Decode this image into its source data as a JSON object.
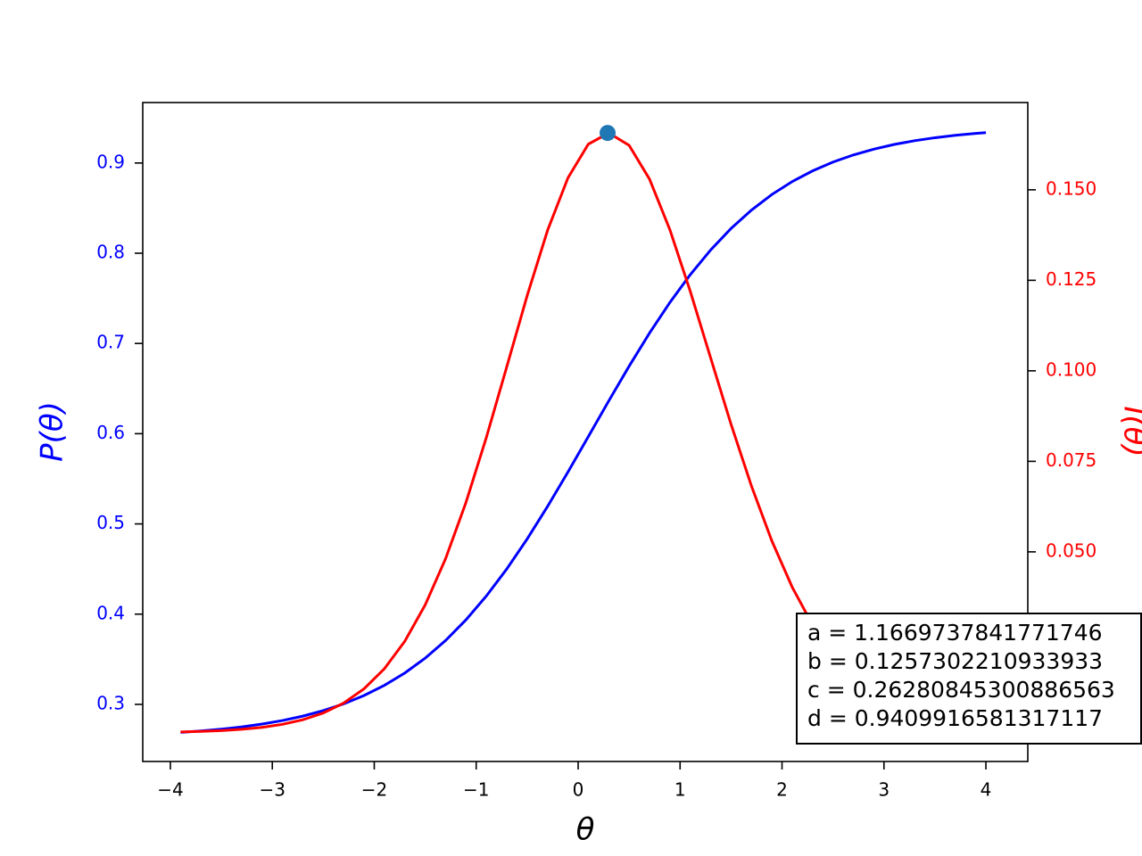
{
  "chart_data": {
    "type": "line",
    "xlabel": "θ",
    "ylabel": "P(θ)",
    "y2label": "I(θ)",
    "x": [
      -3.9,
      -3.7,
      -3.5,
      -3.3,
      -3.1,
      -2.9,
      -2.7,
      -2.5,
      -2.3,
      -2.1,
      -1.9,
      -1.7,
      -1.5,
      -1.3,
      -1.1,
      -0.9,
      -0.7,
      -0.5,
      -0.3,
      -0.1,
      0.1,
      0.3,
      0.5,
      0.7,
      0.9,
      1.1,
      1.3,
      1.5,
      1.7,
      1.9,
      2.1,
      2.3,
      2.5,
      2.7,
      2.9,
      3.1,
      3.3,
      3.5,
      3.7,
      3.9,
      4.0
    ],
    "series": [
      {
        "color": "#0000ff",
        "axis": "y",
        "values": [
          0.26893,
          0.27052,
          0.27252,
          0.27503,
          0.27817,
          0.28209,
          0.28698,
          0.29306,
          0.30057,
          0.30981,
          0.3211,
          0.33479,
          0.35124,
          0.37081,
          0.39372,
          0.42015,
          0.45009,
          0.4833,
          0.51936,
          0.55749,
          0.5968,
          0.63625,
          0.67479,
          0.71145,
          0.74546,
          0.77626,
          0.80361,
          0.82743,
          0.84779,
          0.86504,
          0.87942,
          0.89128,
          0.90102,
          0.90894,
          0.91535,
          0.92053,
          0.92469,
          0.92801,
          0.93067,
          0.93279,
          0.93368
        ]
      },
      {
        "color": "#ff0000",
        "axis": "y2",
        "values": [
          0.000255,
          0.000402,
          0.00063,
          0.000985,
          0.00153,
          0.002363,
          0.003618,
          0.005492,
          0.008238,
          0.012188,
          0.017738,
          0.025322,
          0.03535,
          0.04813,
          0.063677,
          0.08163,
          0.101116,
          0.12076,
          0.13879,
          0.153286,
          0.16261,
          0.165692,
          0.162273,
          0.152958,
          0.138966,
          0.121948,
          0.103544,
          0.085238,
          0.068193,
          0.053049,
          0.040238,
          0.029813,
          0.0216,
          0.015335,
          0.010686,
          0.007322,
          0.004946,
          0.0033,
          0.002177,
          0.001421,
          0.001147
        ]
      }
    ],
    "marker": {
      "x": 0.289,
      "y": 0.1657,
      "color": "#1f77b4",
      "axis": "y2"
    },
    "xlim": [
      -4.271,
      4.411
    ],
    "xticks": [
      {
        "value": -4,
        "label": "−4"
      },
      {
        "value": -3,
        "label": "−3"
      },
      {
        "value": -2,
        "label": "−2"
      },
      {
        "value": -1,
        "label": "−1"
      },
      0,
      1,
      2,
      3,
      4
    ],
    "ylim": [
      0.2367,
      0.967
    ],
    "yticks": [
      0.3,
      0.4,
      0.5,
      0.6,
      0.7,
      0.8,
      0.9
    ],
    "y2lim": [
      -0.0079,
      0.1741
    ],
    "y2ticks": [
      {
        "value": 0,
        "label": "0.000"
      },
      0.025,
      {
        "value": 0.05,
        "label": "0.050"
      },
      0.075,
      {
        "value": 0.1,
        "label": "0.100"
      },
      0.125,
      {
        "value": 0.15,
        "label": "0.150"
      }
    ],
    "ycolor": "#0000ff",
    "y2color": "#ff0000",
    "annotation": [
      "a = 1.1669737841771746",
      "b = 0.1257302210933933",
      "c = 0.26280845300886563",
      "d = 0.9409916581317117"
    ]
  }
}
